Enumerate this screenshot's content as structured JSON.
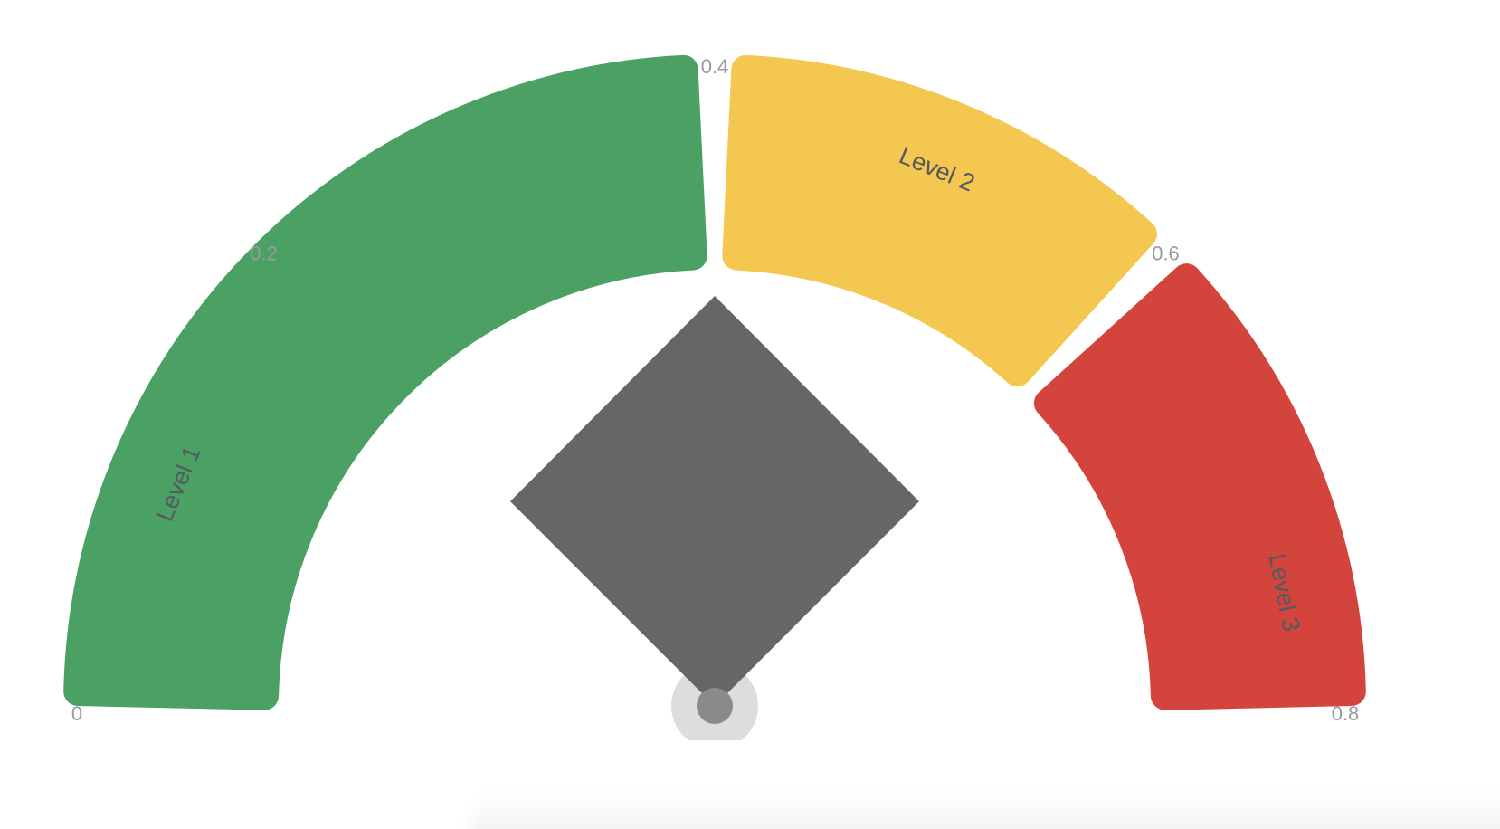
{
  "chart_data": {
    "type": "gauge",
    "min": 0,
    "max": 0.8,
    "value": 0.4,
    "ticks": [
      {
        "value": 0,
        "label": "0"
      },
      {
        "value": 0.2,
        "label": "0.2"
      },
      {
        "value": 0.4,
        "label": "0.4"
      },
      {
        "value": 0.6,
        "label": "0.6"
      },
      {
        "value": 0.8,
        "label": "0.8"
      }
    ],
    "bands": [
      {
        "name": "Level 1",
        "from": 0,
        "to": 0.4,
        "color": "#4ba163"
      },
      {
        "name": "Level 2",
        "from": 0.4,
        "to": 0.6,
        "color": "#f4c750"
      },
      {
        "name": "Level 3",
        "from": 0.6,
        "to": 0.8,
        "color": "#d3443d"
      }
    ],
    "pointer_color": "#666666",
    "pivot_color": "#8a8a8a",
    "pivot_ring_color": "#dddddd"
  }
}
